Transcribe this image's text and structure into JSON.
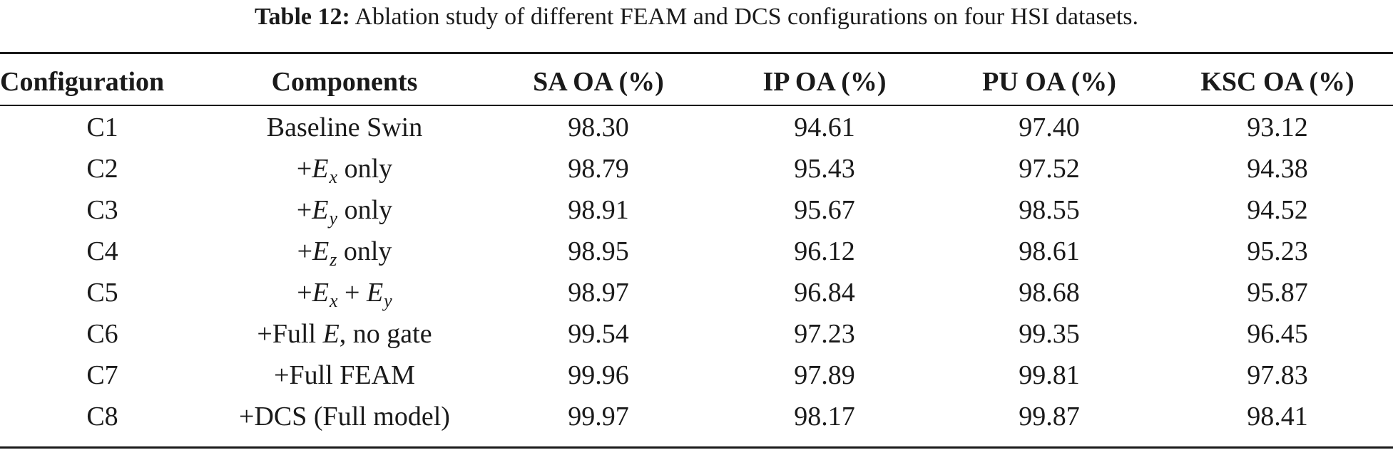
{
  "caption": {
    "label": "Table 12:",
    "text": "Ablation study of different FEAM and DCS configurations on four HSI datasets."
  },
  "table": {
    "headers": [
      "Configuration",
      "Components",
      "SA OA (%)",
      "IP OA (%)",
      "PU OA (%)",
      "KSC OA (%)"
    ],
    "rows": [
      {
        "config": "C1",
        "component": [
          {
            "t": "Baseline Swin"
          }
        ],
        "sa": "98.30",
        "ip": "94.61",
        "pu": "97.40",
        "ksc": "93.12"
      },
      {
        "config": "C2",
        "component": [
          {
            "t": "+"
          },
          {
            "sym": "E"
          },
          {
            "sub": "x"
          },
          {
            "t": " only"
          }
        ],
        "sa": "98.79",
        "ip": "95.43",
        "pu": "97.52",
        "ksc": "94.38"
      },
      {
        "config": "C3",
        "component": [
          {
            "t": "+"
          },
          {
            "sym": "E"
          },
          {
            "sub": "y"
          },
          {
            "t": " only"
          }
        ],
        "sa": "98.91",
        "ip": "95.67",
        "pu": "98.55",
        "ksc": "94.52"
      },
      {
        "config": "C4",
        "component": [
          {
            "t": "+"
          },
          {
            "sym": "E"
          },
          {
            "sub": "z"
          },
          {
            "t": " only"
          }
        ],
        "sa": "98.95",
        "ip": "96.12",
        "pu": "98.61",
        "ksc": "95.23"
      },
      {
        "config": "C5",
        "component": [
          {
            "t": "+"
          },
          {
            "sym": "E"
          },
          {
            "sub": "x"
          },
          {
            "t": " + "
          },
          {
            "sym": "E"
          },
          {
            "sub": "y"
          }
        ],
        "sa": "98.97",
        "ip": "96.84",
        "pu": "98.68",
        "ksc": "95.87"
      },
      {
        "config": "C6",
        "component": [
          {
            "t": "+Full "
          },
          {
            "sym": "E"
          },
          {
            "t": ", no gate"
          }
        ],
        "sa": "99.54",
        "ip": "97.23",
        "pu": "99.35",
        "ksc": "96.45"
      },
      {
        "config": "C7",
        "component": [
          {
            "t": "+Full FEAM"
          }
        ],
        "sa": "99.96",
        "ip": "97.89",
        "pu": "99.81",
        "ksc": "97.83"
      },
      {
        "config": "C8",
        "component": [
          {
            "t": "+DCS (Full model)"
          }
        ],
        "sa": "99.97",
        "ip": "98.17",
        "pu": "99.87",
        "ksc": "98.41"
      }
    ]
  }
}
